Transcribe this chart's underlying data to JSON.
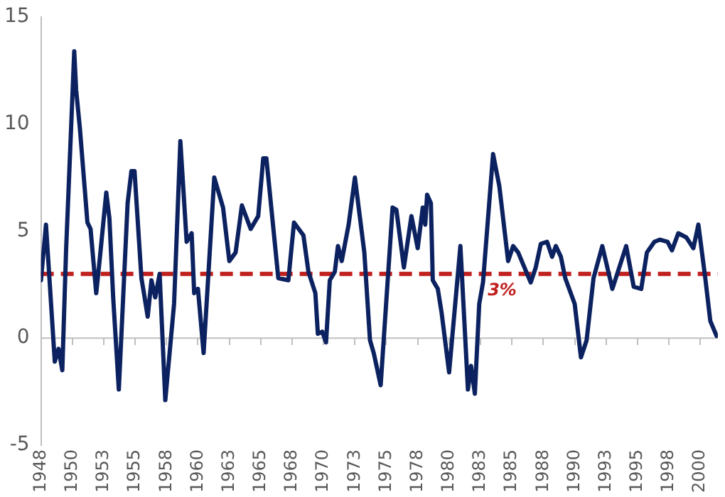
{
  "chart_data": {
    "type": "line",
    "x": [
      1948.0,
      1948.4,
      1949.1,
      1949.4,
      1949.7,
      1950.0,
      1950.65,
      1950.8,
      1951.1,
      1951.7,
      1951.95,
      1952.4,
      1952.7,
      1953.2,
      1953.45,
      1953.75,
      1954.2,
      1954.9,
      1955.2,
      1955.45,
      1956.0,
      1956.2,
      1956.5,
      1956.8,
      1957.1,
      1957.45,
      1957.9,
      1958.6,
      1959.1,
      1959.6,
      1960.0,
      1960.2,
      1960.5,
      1960.95,
      1961.8,
      1962.5,
      1963.0,
      1963.5,
      1964.0,
      1964.7,
      1965.3,
      1965.7,
      1965.95,
      1966.9,
      1967.7,
      1968.15,
      1968.9,
      1969.3,
      1969.85,
      1970.05,
      1970.4,
      1970.7,
      1971.0,
      1971.4,
      1971.65,
      1971.95,
      1972.5,
      1973.0,
      1973.75,
      1974.2,
      1974.5,
      1975.05,
      1976.0,
      1976.3,
      1976.9,
      1977.5,
      1978.0,
      1978.4,
      1978.6,
      1978.75,
      1979.05,
      1979.2,
      1979.6,
      1979.9,
      1980.5,
      1981.4,
      1982.0,
      1982.25,
      1982.55,
      1982.9,
      1983.2,
      1984.0,
      1984.5,
      1985.2,
      1985.6,
      1986.0,
      1987.0,
      1987.4,
      1987.8,
      1988.3,
      1988.7,
      1989.0,
      1989.4,
      1989.75,
      1990.5,
      1991.0,
      1991.45,
      1992.0,
      1992.7,
      1993.5,
      1994.6,
      1995.2,
      1995.8,
      1996.25,
      1996.85,
      1997.3,
      1997.9,
      1998.25,
      1998.75,
      1999.4,
      1999.95,
      2000.35,
      2000.9,
      2001.3,
      2001.8
    ],
    "series": [
      {
        "color": "#0c2260",
        "values": [
          2.7,
          5.3,
          -1.1,
          -0.5,
          -1.5,
          4.1,
          13.4,
          11.6,
          9.8,
          5.4,
          5.1,
          2.1,
          3.8,
          6.8,
          5.6,
          1.9,
          -2.4,
          6.3,
          7.8,
          7.8,
          2.8,
          2.1,
          1.0,
          2.7,
          1.9,
          3.0,
          -2.9,
          1.6,
          9.2,
          4.5,
          4.9,
          2.1,
          2.3,
          -0.7,
          7.5,
          6.1,
          3.6,
          4.0,
          6.2,
          5.1,
          5.7,
          8.4,
          8.4,
          2.8,
          2.7,
          5.4,
          4.8,
          3.1,
          2.1,
          0.2,
          0.3,
          -0.2,
          2.7,
          3.1,
          4.3,
          3.6,
          5.3,
          7.5,
          4.0,
          -0.1,
          -0.7,
          -2.2,
          6.1,
          6.0,
          3.3,
          5.7,
          4.2,
          6.1,
          5.3,
          6.7,
          6.3,
          2.7,
          2.3,
          1.2,
          -1.6,
          4.3,
          -2.4,
          -1.3,
          -2.6,
          1.6,
          2.6,
          8.6,
          7.1,
          3.6,
          4.3,
          4.0,
          2.6,
          3.3,
          4.4,
          4.5,
          3.8,
          4.3,
          3.8,
          2.8,
          1.6,
          -0.9,
          -0.1,
          2.8,
          4.3,
          2.3,
          4.3,
          2.4,
          2.3,
          4.0,
          4.5,
          4.6,
          4.5,
          4.1,
          4.9,
          4.7,
          4.2,
          5.3,
          2.8,
          0.8,
          0.1
        ]
      }
    ],
    "xlim": [
      1948,
      2001.9
    ],
    "xticks": [
      1948,
      {
        "value": 1950.5,
        "label": "1950"
      },
      1953,
      {
        "value": 1955.5,
        "label": "1955"
      },
      1958,
      {
        "value": 1960.5,
        "label": "1960"
      },
      1963,
      {
        "value": 1965.5,
        "label": "1965"
      },
      1968,
      {
        "value": 1970.5,
        "label": "1970"
      },
      1973,
      {
        "value": 1975.5,
        "label": "1975"
      },
      1978,
      {
        "value": 1980.5,
        "label": "1980"
      },
      1983,
      {
        "value": 1985.5,
        "label": "1985"
      },
      1988,
      {
        "value": 1990.5,
        "label": "1990"
      },
      1993,
      {
        "value": 1995.5,
        "label": "1995"
      },
      1998,
      {
        "value": 2000.5,
        "label": "2000"
      }
    ],
    "ylim": [
      -5,
      15
    ],
    "yticks": [
      -5,
      0,
      5,
      10,
      15
    ],
    "ref_lines": [
      {
        "axis": "y",
        "value": 0,
        "color": "#bfbfbf",
        "line_style": "solid"
      },
      {
        "axis": "y",
        "value": 3,
        "label": "3%",
        "color": "#c0201e",
        "line_style": "dashed"
      }
    ],
    "grid": false,
    "legend": false,
    "marker": "none",
    "line_style": "solid"
  }
}
